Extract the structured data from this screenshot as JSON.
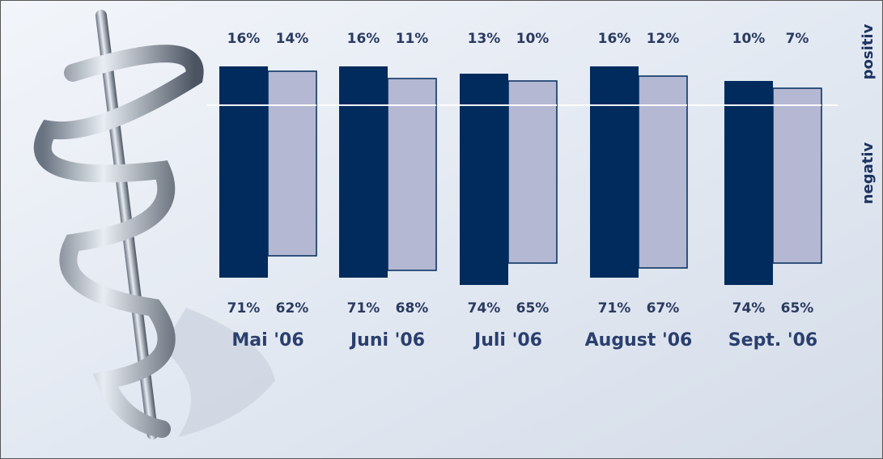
{
  "chart_data": {
    "type": "diverging_bar",
    "categories": [
      "Mai '06",
      "Juni '06",
      "Juli '06",
      "August '06",
      "Sept. '06"
    ],
    "positive_label": "positiv",
    "negative_label": "negativ",
    "series": [
      {
        "color": "#002b5c",
        "values": [
          16,
          16,
          13,
          16,
          10
        ],
        "value_labels": [
          "16%",
          "16%",
          "13%",
          "16%",
          "10%"
        ],
        "negative_values": [
          71,
          71,
          74,
          71,
          74
        ],
        "negative_value_labels": [
          "71%",
          "71%",
          "74%",
          "71%",
          "74%"
        ]
      },
      {
        "color": "#b4b8d2",
        "values": [
          14,
          11,
          10,
          12,
          7
        ],
        "value_labels": [
          "14%",
          "11%",
          "10%",
          "12%",
          "7%"
        ],
        "negative_values": [
          62,
          68,
          65,
          67,
          65
        ],
        "negative_value_labels": [
          "62%",
          "68%",
          "65%",
          "67%",
          "65%"
        ]
      }
    ]
  }
}
